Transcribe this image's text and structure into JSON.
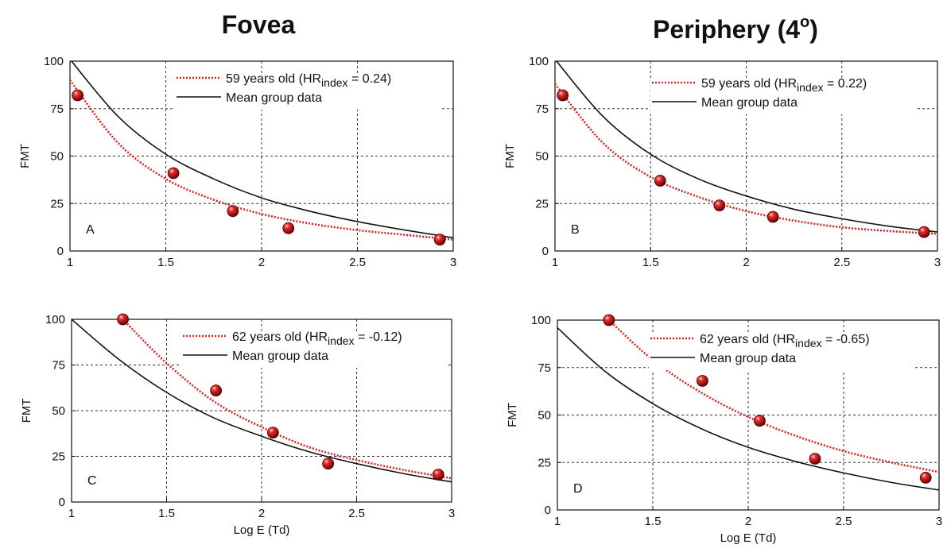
{
  "titles": {
    "left": "Fovea",
    "right_prefix": "Periphery (4",
    "right_sup": "o",
    "right_suffix": ")"
  },
  "chart_data": [
    {
      "type": "scatter",
      "panel": "A",
      "ylabel": "FMT",
      "xlabel": "",
      "xlim": [
        1,
        3
      ],
      "ylim": [
        0,
        100
      ],
      "xticks": [
        "1",
        "1.5",
        "2",
        "2.5",
        "3"
      ],
      "yticks": [
        "0",
        "25",
        "50",
        "75",
        "100"
      ],
      "grid": true,
      "legend_position": "top-right",
      "legend": {
        "fit_prefix": "59 years old (HR",
        "fit_sub": "index",
        "fit_suffix": " = 0.24)",
        "mean": "Mean group data"
      },
      "points": {
        "x": [
          1.04,
          1.54,
          1.85,
          2.14,
          2.93
        ],
        "y": [
          82,
          41,
          21,
          12,
          6
        ]
      },
      "fit_curve": {
        "x": [
          1.0,
          1.25,
          1.5,
          1.75,
          2.0,
          2.25,
          2.5,
          2.75,
          3.0
        ],
        "y": [
          90,
          57,
          38,
          27,
          19.5,
          14.5,
          11,
          8.5,
          6
        ]
      },
      "mean_curve": {
        "x": [
          1.0,
          1.25,
          1.5,
          1.75,
          2.0,
          2.25,
          2.5,
          2.75,
          3.0
        ],
        "y": [
          101,
          71,
          51,
          38,
          28,
          21,
          15.5,
          11,
          7
        ]
      }
    },
    {
      "type": "scatter",
      "panel": "B",
      "ylabel": "FMT",
      "xlabel": "",
      "xlim": [
        1,
        3
      ],
      "ylim": [
        0,
        100
      ],
      "xticks": [
        "1",
        "1.5",
        "2",
        "2.5",
        "3"
      ],
      "yticks": [
        "0",
        "25",
        "50",
        "75",
        "100"
      ],
      "grid": true,
      "legend_position": "top-right",
      "legend": {
        "fit_prefix": "59 years old (HR",
        "fit_sub": "index",
        "fit_suffix": " = 0.22)",
        "mean": "Mean group data"
      },
      "points": {
        "x": [
          1.04,
          1.55,
          1.86,
          2.14,
          2.93
        ],
        "y": [
          82,
          37,
          24,
          18,
          10
        ]
      },
      "fit_curve": {
        "x": [
          1.0,
          1.25,
          1.5,
          1.75,
          2.0,
          2.25,
          2.5,
          2.75,
          3.0
        ],
        "y": [
          88,
          57,
          39,
          28.5,
          21,
          16,
          12.5,
          10.5,
          9
        ]
      },
      "mean_curve": {
        "x": [
          1.0,
          1.25,
          1.5,
          1.75,
          2.0,
          2.25,
          2.5,
          2.75,
          3.0
        ],
        "y": [
          101,
          71,
          51,
          38,
          29,
          22,
          17,
          13,
          10
        ]
      }
    },
    {
      "type": "scatter",
      "panel": "C",
      "ylabel": "FMT",
      "xlabel": "Log E (Td)",
      "xlim": [
        1,
        3
      ],
      "ylim": [
        0,
        100
      ],
      "xticks": [
        "1",
        "1.5",
        "2",
        "2.5",
        "3"
      ],
      "yticks": [
        "0",
        "25",
        "50",
        "75",
        "100"
      ],
      "grid": true,
      "legend_position": "top-right",
      "legend": {
        "fit_prefix": "62 years old (HR",
        "fit_sub": "index",
        "fit_suffix": " = -0.12)",
        "mean": "Mean group data"
      },
      "points": {
        "x": [
          1.27,
          1.76,
          2.06,
          2.35,
          2.93
        ],
        "y": [
          100,
          61,
          38,
          21,
          15
        ]
      },
      "fit_curve": {
        "x": [
          1.27,
          1.5,
          1.75,
          2.0,
          2.25,
          2.5,
          2.75,
          3.0
        ],
        "y": [
          100,
          76,
          55,
          41,
          30,
          23,
          17.5,
          13
        ]
      },
      "mean_curve": {
        "x": [
          1.0,
          1.25,
          1.5,
          1.75,
          2.0,
          2.25,
          2.5,
          2.75,
          3.0
        ],
        "y": [
          100,
          78,
          60,
          46,
          36,
          27.5,
          21,
          15.5,
          11
        ]
      }
    },
    {
      "type": "scatter",
      "panel": "D",
      "ylabel": "FMT",
      "xlabel": "Log E (Td)",
      "xlim": [
        1,
        3
      ],
      "ylim": [
        0,
        100
      ],
      "xticks": [
        "1",
        "1.5",
        "2",
        "2.5",
        "3"
      ],
      "yticks": [
        "0",
        "25",
        "50",
        "75",
        "100"
      ],
      "grid": true,
      "legend_position": "top-right",
      "legend": {
        "fit_prefix": "62 years old (HR",
        "fit_sub": "index",
        "fit_suffix": " = -0.65)",
        "mean": "Mean group data"
      },
      "points": {
        "x": [
          1.27,
          1.76,
          2.06,
          2.35,
          2.93
        ],
        "y": [
          100,
          68,
          47,
          27,
          17
        ]
      },
      "fit_curve": {
        "x": [
          1.27,
          1.5,
          1.75,
          2.0,
          2.25,
          2.5,
          2.75,
          3.0
        ],
        "y": [
          100,
          79,
          62,
          49,
          39,
          31,
          25,
          20
        ]
      },
      "mean_curve": {
        "x": [
          1.0,
          1.25,
          1.5,
          1.75,
          2.0,
          2.25,
          2.5,
          2.75,
          3.0
        ],
        "y": [
          96,
          73,
          56,
          43,
          33,
          25.5,
          19.5,
          14.5,
          10.5
        ]
      }
    }
  ],
  "colors": {
    "fit": "#dd2222",
    "mean": "#111111",
    "point_fill": "#cc1111",
    "grid": "#333333"
  }
}
